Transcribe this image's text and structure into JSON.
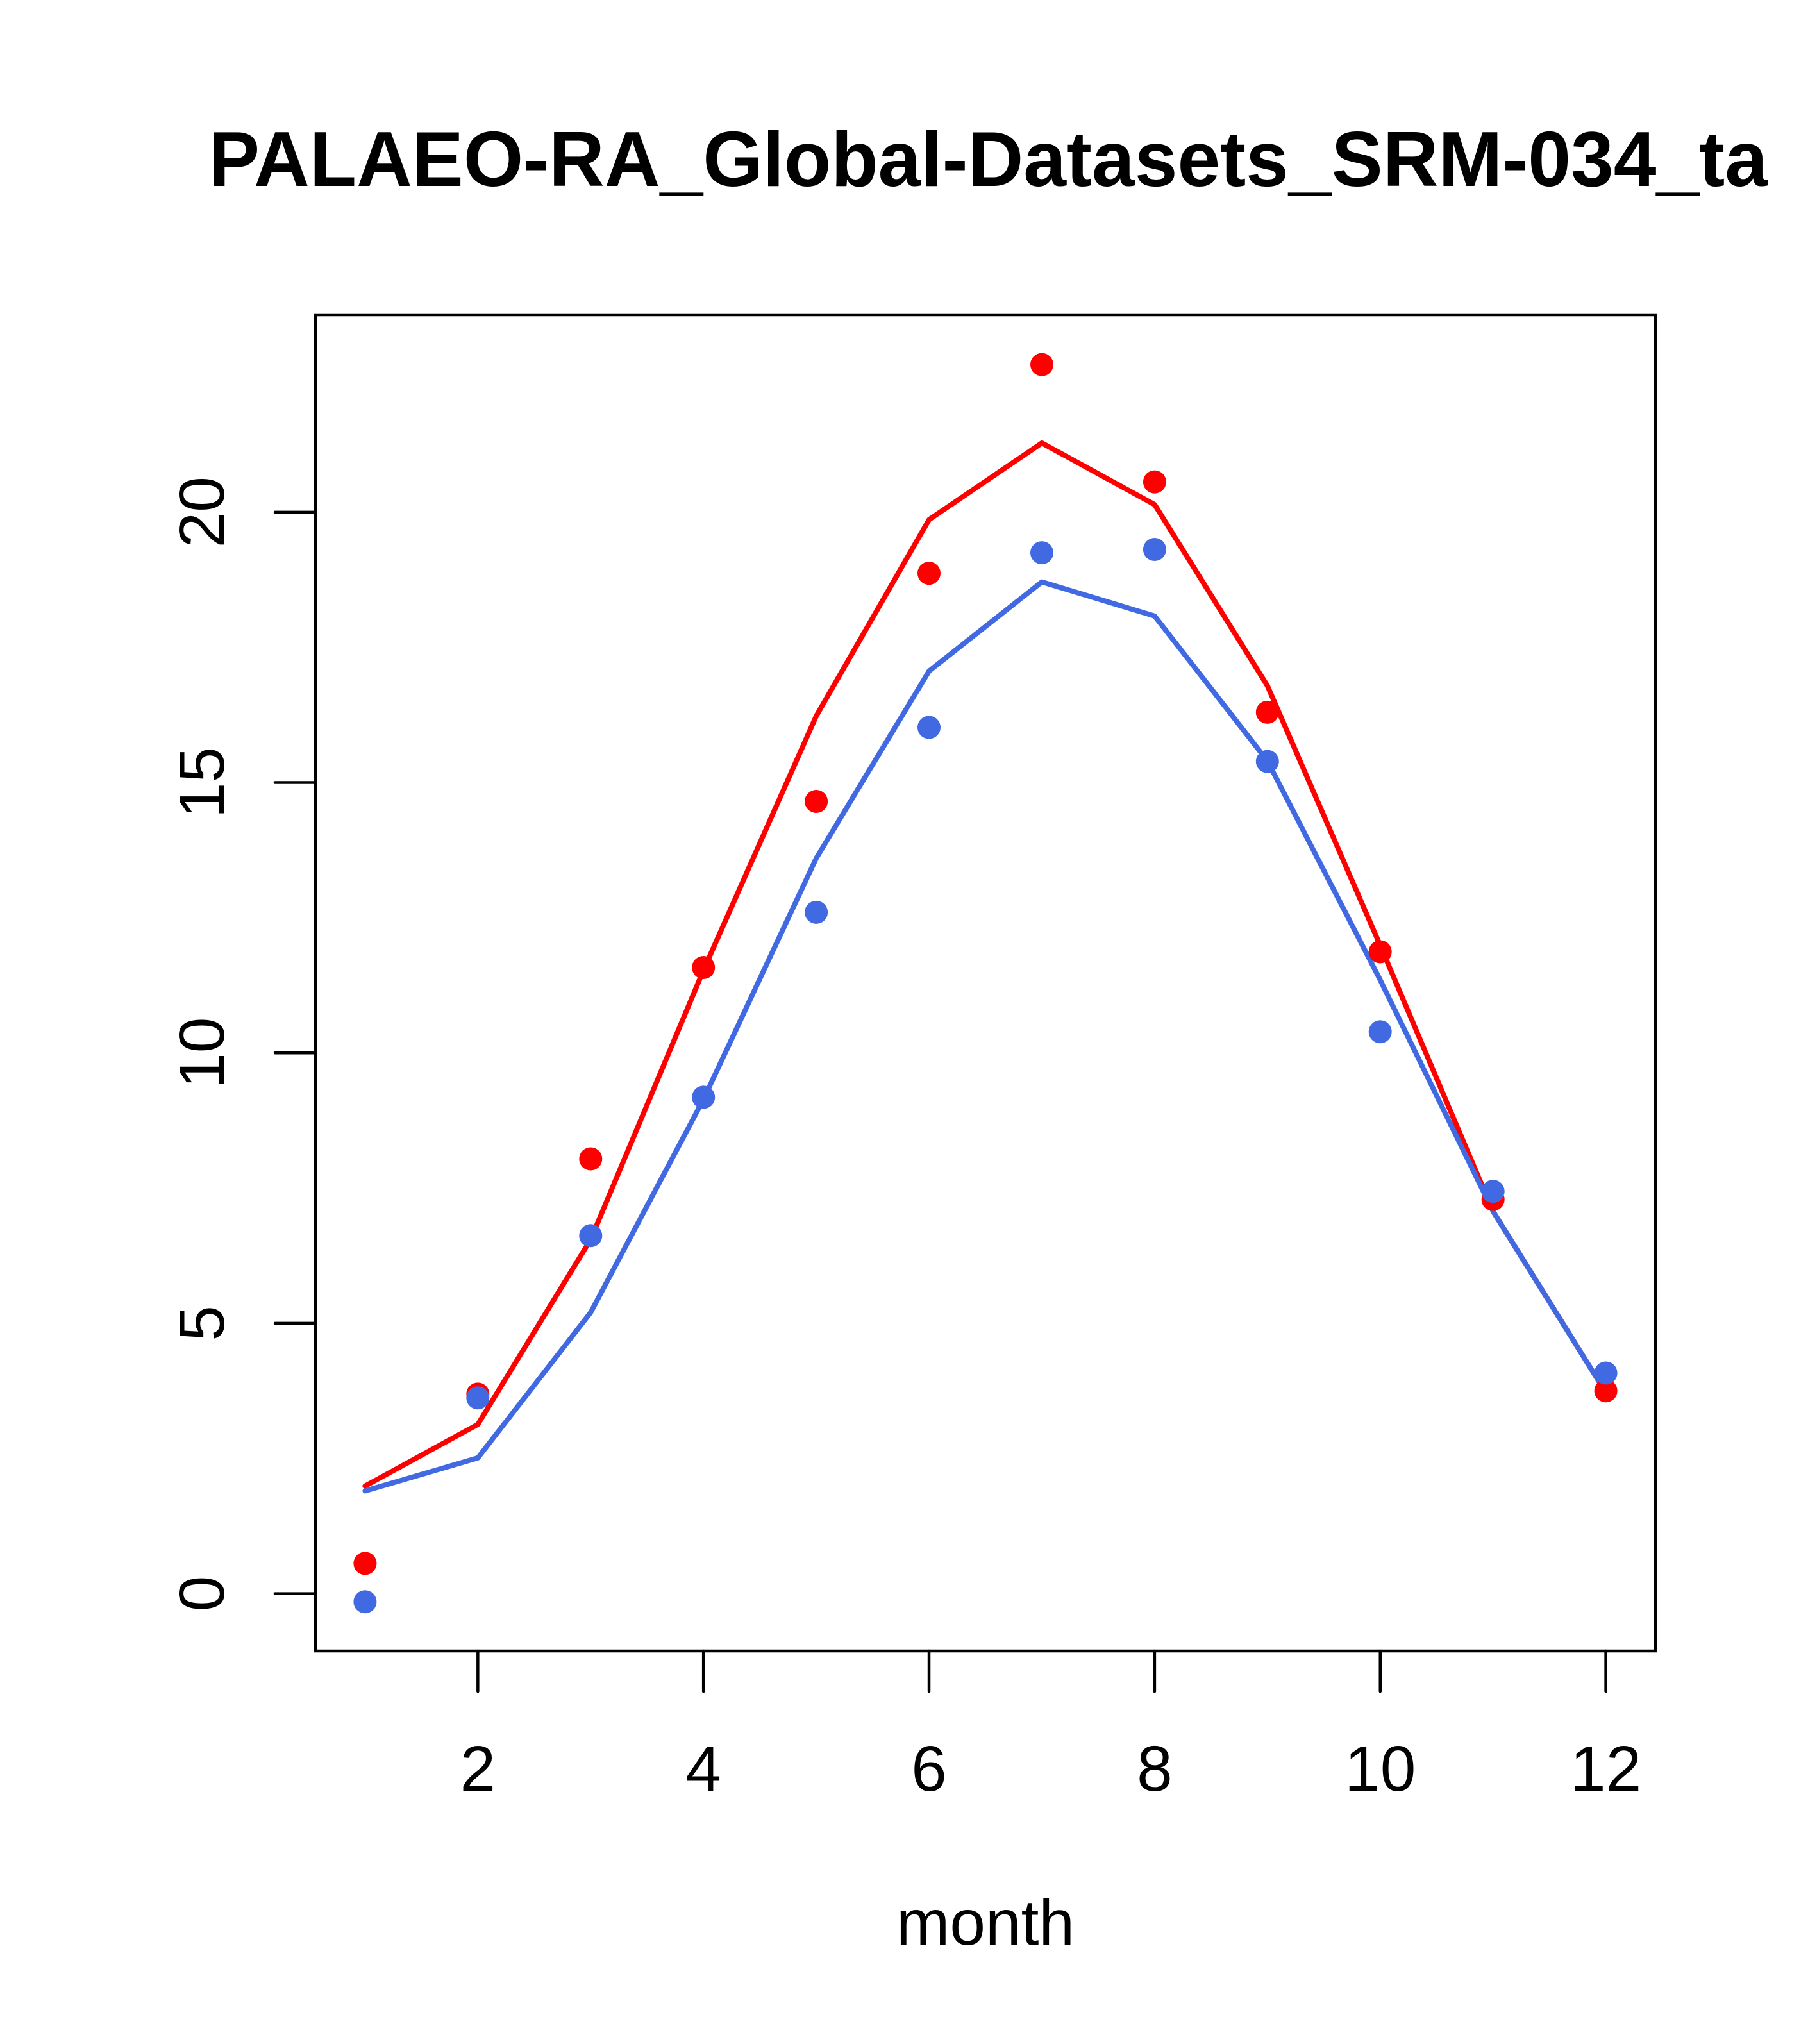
{
  "chart_data": {
    "type": "line",
    "title": "PALAEO-RA_Global-Datasets_SRM-034_ta",
    "xlabel": "month",
    "ylabel": "",
    "xlim": [
      0.56,
      12.44
    ],
    "ylim": [
      -1.06,
      23.65
    ],
    "x_ticks": [
      2,
      4,
      6,
      8,
      10,
      12
    ],
    "x_tick_labels": [
      "2",
      "4",
      "6",
      "8",
      "10",
      "12"
    ],
    "y_ticks": [
      0,
      5,
      10,
      15,
      20
    ],
    "y_tick_labels": [
      "0",
      "5",
      "10",
      "15",
      "20"
    ],
    "grid": false,
    "legend": null,
    "x": [
      1,
      2,
      3,
      4,
      5,
      6,
      7,
      8,
      9,
      10,
      11,
      12
    ],
    "series": [
      {
        "name": "red-line",
        "kind": "line",
        "color": "#FF0000",
        "values": [
          1.99,
          3.13,
          6.55,
          11.53,
          16.23,
          19.86,
          21.28,
          20.14,
          16.79,
          11.99,
          7.07,
          3.72
        ]
      },
      {
        "name": "blue-line",
        "kind": "line",
        "color": "#4169E1",
        "values": [
          1.9,
          2.51,
          5.2,
          9.14,
          13.6,
          17.06,
          18.71,
          18.08,
          15.4,
          11.35,
          7.07,
          3.72
        ]
      },
      {
        "name": "red-points",
        "kind": "points",
        "color": "#FF0000",
        "values": [
          0.56,
          3.69,
          8.04,
          11.58,
          14.65,
          18.87,
          22.73,
          20.56,
          16.3,
          11.87,
          7.29,
          3.75
        ]
      },
      {
        "name": "blue-points",
        "kind": "points",
        "color": "#4169E1",
        "values": [
          -0.15,
          3.62,
          6.62,
          9.18,
          12.6,
          16.02,
          19.25,
          19.31,
          15.39,
          10.39,
          7.44,
          4.08
        ]
      }
    ]
  }
}
